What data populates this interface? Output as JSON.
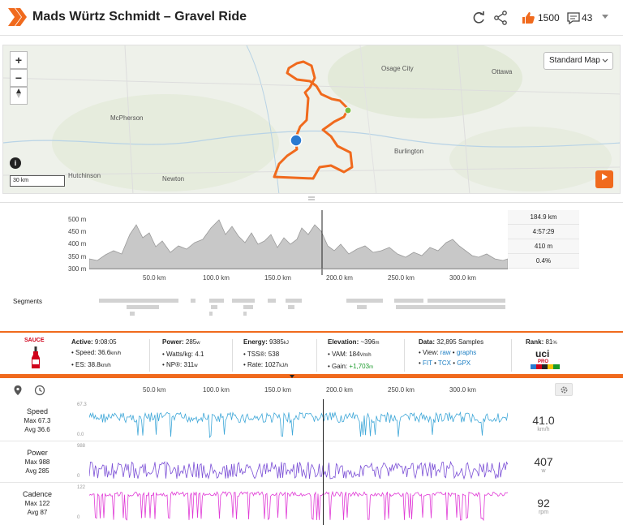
{
  "header": {
    "title": "Mads Würtz Schmidt – Gravel Ride",
    "kudos": "1500",
    "comments": "43"
  },
  "map": {
    "style_select": "Standard Map",
    "scale": "30 km",
    "zoom_in": "+",
    "zoom_out": "−",
    "labels": {
      "osage_city": "Osage City",
      "ottawa": "Ottawa",
      "mcpherson": "McPherson",
      "burlington": "Burlington",
      "hutchinson": "Hutchinson",
      "newton": "Newton"
    },
    "route_color": "#f06a1d"
  },
  "elevation": {
    "y_ticks": [
      "500 m",
      "450 m",
      "400 m",
      "350 m",
      "300 m"
    ],
    "x_ticks": [
      "50.0 km",
      "100.0 km",
      "150.0 km",
      "200.0 km",
      "250.0 km",
      "300.0 km"
    ],
    "stats": [
      "184.9 km",
      "4:57:29",
      "410 m",
      "0.4%"
    ],
    "segments_label": "Segments"
  },
  "stats": {
    "sauce_label": "SAUCE",
    "active_label": "Active:",
    "active_value": "9:08:05",
    "speed_label": "• Speed:",
    "speed_value": "36.6",
    "speed_unit": "km/h",
    "es_label": "• ES:",
    "es_value": "38.8",
    "es_unit": "km/h",
    "power_label": "Power:",
    "power_value": "285",
    "power_unit": "w",
    "wkg_label": "• Watts/kg:",
    "wkg_value": "4.1",
    "np_label": "• NP®:",
    "np_value": "311",
    "np_unit": "w",
    "energy_label": "Energy:",
    "energy_value": "9385",
    "energy_unit": "kJ",
    "tss_label": "• TSS®:",
    "tss_value": "538",
    "rate_label": "• Rate:",
    "rate_value": "1027",
    "rate_unit": "kJ/h",
    "elev_label": "Elevation:",
    "elev_value": "~396",
    "elev_unit": "m",
    "vam_label": "• VAM:",
    "vam_value": "184",
    "vam_unit": "Vm/h",
    "gain_label": "• Gain:",
    "gain_value": "+1,703",
    "gain_unit": "m",
    "data_label": "Data:",
    "data_value": "32,895 Samples",
    "view_label": "• View:",
    "view_raw": "raw",
    "view_graphs": "graphs",
    "fit": "FIT",
    "tcx": "TCX",
    "gpx": "GPX",
    "rank_label": "Rank:",
    "rank_value": "81",
    "rank_unit": "%",
    "uci_label": "uci",
    "pro_label": "PRO"
  },
  "bottom": {
    "x_ticks": [
      "50.0 km",
      "100.0 km",
      "150.0 km",
      "200.0 km",
      "250.0 km",
      "300.0 km"
    ],
    "metrics": [
      {
        "name": "Speed",
        "max": "Max 67.3",
        "avg": "Avg 36.6",
        "ymax": "67.3",
        "ymin": "0.0",
        "value": "41.0",
        "unit": "km/h",
        "color": "#3ea7d8"
      },
      {
        "name": "Power",
        "max": "Max 988",
        "avg": "Avg 285",
        "ymax": "988",
        "ymin": "0",
        "value": "407",
        "unit": "w",
        "color": "#7b4fd6"
      },
      {
        "name": "Cadence",
        "max": "Max 122",
        "avg": "Avg 87",
        "ymax": "122",
        "ymin": "0",
        "value": "92",
        "unit": "rpm",
        "color": "#e03ad6"
      }
    ]
  }
}
